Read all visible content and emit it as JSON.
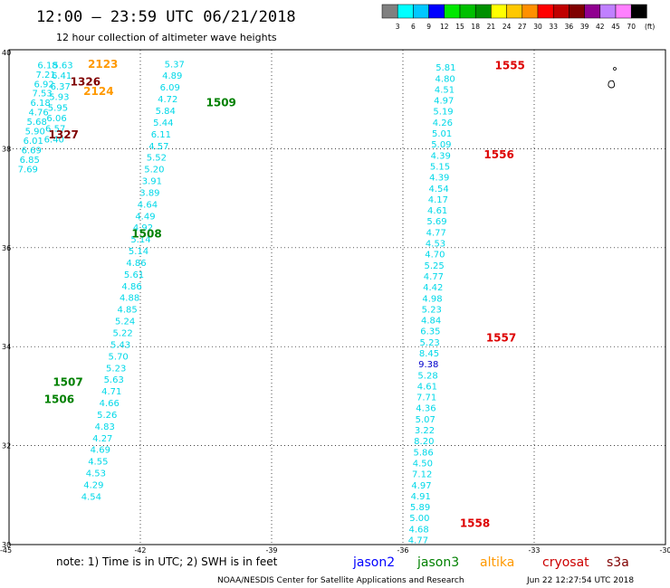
{
  "header": {
    "title": "12:00 – 23:59 UTC 06/21/2018",
    "subtitle": "12 hour collection of altimeter wave heights"
  },
  "color_scale": {
    "labels": [
      "3",
      "6",
      "9",
      "12",
      "15",
      "18",
      "21",
      "24",
      "27",
      "30",
      "33",
      "36",
      "39",
      "42",
      "45",
      "70"
    ],
    "unit": "(ft)",
    "colors": [
      "#808080",
      "#00ffff",
      "#00c8ff",
      "#0000ff",
      "#00e800",
      "#00c000",
      "#009000",
      "#ffff00",
      "#ffc800",
      "#ff9000",
      "#ff0000",
      "#c00000",
      "#800000",
      "#900090",
      "#c080ff",
      "#ff80ff",
      "#000000"
    ]
  },
  "note": "note:  1) Time is in UTC;  2) SWH is in feet",
  "satellites": [
    {
      "name": "jason2",
      "color": "#0000ff"
    },
    {
      "name": "jason3",
      "color": "#008000"
    },
    {
      "name": "altika",
      "color": "#ff9900"
    },
    {
      "name": "cryosat",
      "color": "#cc0000"
    },
    {
      "name": "s3a",
      "color": "#800000"
    }
  ],
  "footer": {
    "credit": "NOAA/NESDIS Center for Satellite Applications and Research",
    "timestamp": "Jun 22 12:27:54 UTC 2018"
  },
  "chart_data": {
    "type": "scatter",
    "x_range": [
      -45,
      -30
    ],
    "y_range": [
      30,
      40
    ],
    "x_ticks": [
      "-45",
      "-42",
      "-39",
      "-36",
      "-33",
      "-30"
    ],
    "y_ticks": [
      "30",
      "32",
      "34",
      "36",
      "38",
      "40"
    ],
    "grid": true,
    "point_color": "#00d8e8",
    "highlight_color": "#0000cc",
    "tracks": [
      {
        "name": "track-a",
        "x_start": -43.35,
        "y_start": 30.98,
        "x_end": -41.45,
        "y_end": 39.72,
        "values": [
          "4.54",
          "4.29",
          "4.53",
          "4.55",
          "4.69",
          "4.27",
          "4.83",
          "5.26",
          "4.66",
          "4.71",
          "5.63",
          "5.23",
          "5.70",
          "5.43",
          "5.22",
          "5.24",
          "4.85",
          "4.88",
          "4.86",
          "5.61",
          "4.86",
          "5.14",
          "5.14",
          "4.92",
          "4.49",
          "4.64",
          "3.89",
          "3.91",
          "5.20",
          "5.52",
          "4.57",
          "6.11",
          "5.44",
          "5.84",
          "4.72",
          "6.09",
          "4.89",
          "5.37"
        ]
      },
      {
        "name": "track-b",
        "x_start": -44.8,
        "y_start": 37.6,
        "x_end": -44.35,
        "y_end": 39.7,
        "values": [
          "7.69",
          "6.85",
          "6.69",
          "6.01",
          "5.90",
          "5.68",
          "4.76",
          "6.18",
          "7.53",
          "6.92",
          "7.21",
          "6.18"
        ]
      },
      {
        "name": "track-c",
        "x_start": -44.2,
        "y_start": 38.2,
        "x_end": -44.0,
        "y_end": 39.7,
        "values": [
          "6.40",
          "6.57",
          "6.06",
          "5.95",
          "5.93",
          "6.37",
          "6.41",
          "5.63"
        ]
      },
      {
        "name": "track-d",
        "x_start": -35.88,
        "y_start": 30.1,
        "x_end": -35.25,
        "y_end": 39.65,
        "values": [
          "4.77",
          "4.68",
          "5.00",
          "5.89",
          "4.91",
          "4.97",
          "7.12",
          "4.50",
          "5.86",
          "8.20",
          "3.22",
          "5.07",
          "4.36",
          "7.71",
          "4.61",
          "5.28",
          "9.38",
          "8.45",
          "5.23",
          "6.35",
          "4.84",
          "5.23",
          "4.98",
          "4.42",
          "4.77",
          "5.25",
          "4.70",
          "4.53",
          "4.77",
          "5.69",
          "4.61",
          "4.17",
          "4.54",
          "4.39",
          "5.15",
          "4.39",
          "5.09",
          "5.01",
          "4.26",
          "5.19",
          "4.97",
          "4.51",
          "4.80",
          "5.81"
        ],
        "highlight_value": "9.38"
      }
    ],
    "pass_labels": [
      {
        "text": "2123",
        "x": -43.2,
        "y": 39.73,
        "color": "#ff9900"
      },
      {
        "text": "1326",
        "x": -43.6,
        "y": 39.37,
        "color": "#800000"
      },
      {
        "text": "2124",
        "x": -43.3,
        "y": 39.18,
        "color": "#ff9900"
      },
      {
        "text": "1327",
        "x": -44.1,
        "y": 38.3,
        "color": "#800000"
      },
      {
        "text": "1509",
        "x": -40.5,
        "y": 38.95,
        "color": "#008000"
      },
      {
        "text": "1508",
        "x": -42.2,
        "y": 36.3,
        "color": "#008000"
      },
      {
        "text": "1507",
        "x": -44.0,
        "y": 33.3,
        "color": "#008000"
      },
      {
        "text": "1506",
        "x": -44.2,
        "y": 32.95,
        "color": "#008000"
      },
      {
        "text": "1555",
        "x": -33.9,
        "y": 39.7,
        "color": "#dd0000"
      },
      {
        "text": "1556",
        "x": -34.15,
        "y": 37.9,
        "color": "#dd0000"
      },
      {
        "text": "1557",
        "x": -34.1,
        "y": 34.2,
        "color": "#dd0000"
      },
      {
        "text": "1558",
        "x": -34.7,
        "y": 30.45,
        "color": "#dd0000"
      }
    ]
  }
}
